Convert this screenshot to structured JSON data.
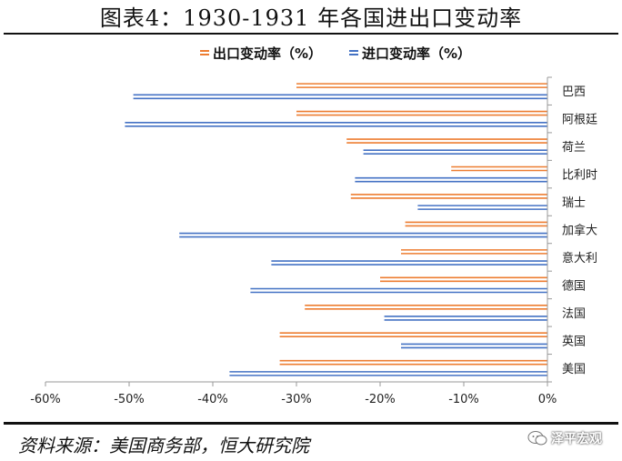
{
  "header": {
    "title": "图表4：1930-1931 年各国进出口变动率"
  },
  "footer": {
    "source": "资料来源：美国商务部，恒大研究院",
    "watermark": "泽平宏观"
  },
  "colors": {
    "export": "#ED7D31",
    "import": "#4472C4",
    "axis": "#999999",
    "text": "#222222"
  },
  "chart_data": {
    "type": "bar",
    "orientation": "horizontal",
    "title": "图表4：1930-1931 年各国进出口变动率",
    "categories": [
      "巴西",
      "阿根廷",
      "荷兰",
      "比利时",
      "瑞士",
      "加拿大",
      "意大利",
      "德国",
      "法国",
      "英国",
      "美国"
    ],
    "series": [
      {
        "name": "出口变动率（%）",
        "values": [
          -30,
          -30,
          -24,
          -11.5,
          -23.5,
          -17,
          -17.5,
          -20,
          -29,
          -32,
          -32
        ]
      },
      {
        "name": "进口变动率（%）",
        "values": [
          -49.5,
          -50.5,
          -22,
          -23,
          -15.5,
          -44,
          -33,
          -35.5,
          -19.5,
          -17.5,
          -38
        ]
      }
    ],
    "xlim": [
      -60,
      0
    ],
    "xticks": [
      -60,
      -50,
      -40,
      -30,
      -20,
      -10,
      0
    ],
    "xtick_labels": [
      "-60%",
      "-50%",
      "-40%",
      "-30%",
      "-20%",
      "-10%",
      "0%"
    ],
    "legend": "top-center",
    "grid": false
  }
}
